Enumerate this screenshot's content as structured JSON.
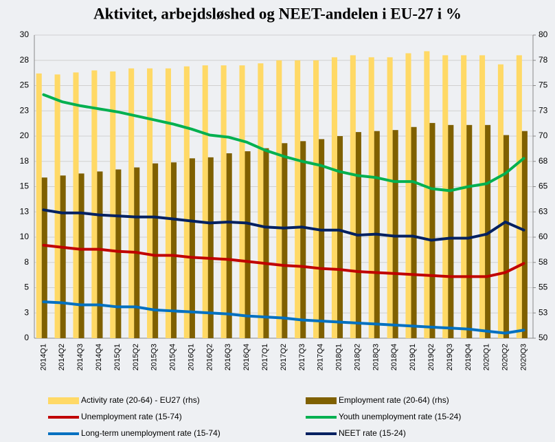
{
  "chart_data": {
    "type": "bar_line",
    "title": "Aktivitet, arbejdsløshed og NEET-andelen i EU-27 i %",
    "categories": [
      "2014Q1",
      "2014Q2",
      "2014Q3",
      "2014Q4",
      "2015Q1",
      "2015Q2",
      "2015Q3",
      "2015Q4",
      "2016Q1",
      "2016Q2",
      "2016Q3",
      "2016Q4",
      "2017Q1",
      "2017Q2",
      "2017Q3",
      "2017Q4",
      "2018Q1",
      "2018Q2",
      "2018Q3",
      "2018Q4",
      "2019Q1",
      "2019Q2",
      "2019Q3",
      "2019Q4",
      "2020Q1",
      "2020Q2",
      "2020Q3"
    ],
    "ylim": [
      0,
      30
    ],
    "yticks": [
      0,
      {
        "value": 2.5,
        "label": "3"
      },
      5,
      {
        "value": 7.5,
        "label": "8"
      },
      10,
      {
        "value": 12.5,
        "label": "13"
      },
      15,
      {
        "value": 17.5,
        "label": "18"
      },
      20,
      {
        "value": 22.5,
        "label": "23"
      },
      25,
      {
        "value": 27.5,
        "label": "28"
      },
      30
    ],
    "y2lim": [
      50,
      80
    ],
    "y2ticks": [
      50,
      {
        "value": 52.5,
        "label": "53"
      },
      55,
      {
        "value": 57.5,
        "label": "58"
      },
      60,
      {
        "value": 62.5,
        "label": "63"
      },
      65,
      {
        "value": 67.5,
        "label": "68"
      },
      70,
      {
        "value": 72.5,
        "label": "73"
      },
      75,
      {
        "value": 77.5,
        "label": "78"
      },
      80
    ],
    "grid": true,
    "legend": "bottom",
    "series": [
      {
        "name": "Activity rate (20-64) - EU27 (rhs)",
        "type": "bar",
        "axis": "y2",
        "color": "#ffd966",
        "values": [
          76.2,
          76.1,
          76.3,
          76.5,
          76.4,
          76.7,
          76.7,
          76.7,
          76.9,
          77.0,
          77.0,
          77.0,
          77.2,
          77.5,
          77.5,
          77.5,
          77.8,
          78.0,
          77.8,
          77.8,
          78.2,
          78.4,
          78.0,
          78.0,
          78.0,
          77.1,
          78.0
        ]
      },
      {
        "name": "Employment rate (20-64) (rhs)",
        "type": "bar",
        "axis": "y2",
        "color": "#7f6000",
        "values": [
          65.9,
          66.1,
          66.3,
          66.5,
          66.7,
          66.9,
          67.3,
          67.4,
          67.8,
          67.9,
          68.3,
          68.5,
          68.8,
          69.3,
          69.5,
          69.7,
          70.0,
          70.4,
          70.5,
          70.6,
          70.9,
          71.3,
          71.1,
          71.1,
          71.1,
          70.1,
          70.5
        ]
      },
      {
        "name": "Unemployment rate (15-74)",
        "type": "line",
        "color": "#c00000",
        "values": [
          9.2,
          9.0,
          8.8,
          8.8,
          8.6,
          8.5,
          8.2,
          8.2,
          8.0,
          7.9,
          7.8,
          7.6,
          7.4,
          7.2,
          7.1,
          6.9,
          6.8,
          6.6,
          6.5,
          6.4,
          6.3,
          6.2,
          6.1,
          6.1,
          6.1,
          6.5,
          7.4
        ]
      },
      {
        "name": "Youth unemployment rate (15-24)",
        "type": "line",
        "color": "#00b050",
        "values": [
          24.1,
          23.4,
          23.0,
          22.7,
          22.4,
          22.0,
          21.6,
          21.2,
          20.7,
          20.1,
          19.9,
          19.4,
          18.6,
          18.0,
          17.5,
          17.1,
          16.5,
          16.1,
          15.9,
          15.5,
          15.5,
          14.8,
          14.6,
          15.0,
          15.3,
          16.3,
          17.8
        ]
      },
      {
        "name": "Long-term unemployment rate (15-74)",
        "type": "line",
        "color": "#0070c0",
        "values": [
          3.6,
          3.5,
          3.3,
          3.3,
          3.1,
          3.1,
          2.8,
          2.7,
          2.6,
          2.5,
          2.4,
          2.2,
          2.1,
          2.0,
          1.8,
          1.7,
          1.6,
          1.5,
          1.4,
          1.3,
          1.2,
          1.1,
          1.0,
          0.9,
          0.7,
          0.5,
          0.8
        ]
      },
      {
        "name": "NEET rate (15-24)",
        "type": "line",
        "color": "#002060",
        "values": [
          12.7,
          12.4,
          12.4,
          12.2,
          12.1,
          12.0,
          12.0,
          11.8,
          11.6,
          11.4,
          11.5,
          11.4,
          11.0,
          10.9,
          11.0,
          10.7,
          10.7,
          10.2,
          10.3,
          10.1,
          10.1,
          9.7,
          9.9,
          9.9,
          10.3,
          11.5,
          10.7
        ]
      }
    ]
  }
}
